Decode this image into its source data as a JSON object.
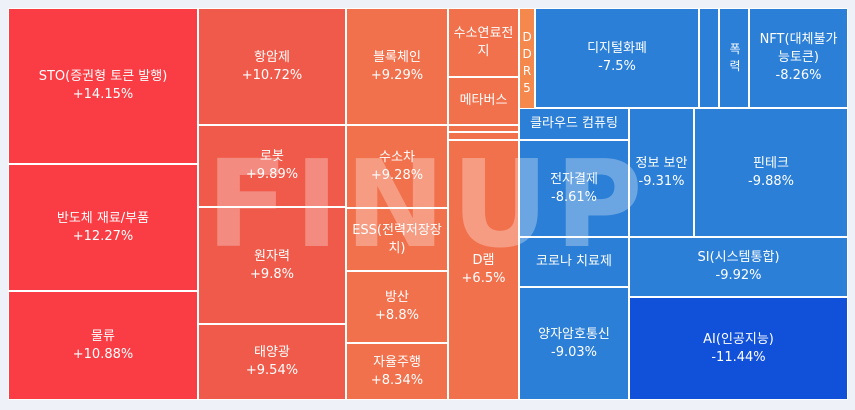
{
  "chart_data": {
    "type": "treemap",
    "watermark": "FINUP",
    "colors": {
      "strong_up": "#fa3c44",
      "mid_up": "#f05a4a",
      "light_up": "#f2714d",
      "weak_up": "#f5884c",
      "down": "#2b7fd6",
      "strong_down": "#1150d8"
    },
    "items": [
      {
        "name": "STO(증권형 토큰 발행)",
        "change": "+14.15%",
        "value": 14.15
      },
      {
        "name": "반도체 재료/부품",
        "change": "+12.27%",
        "value": 12.27
      },
      {
        "name": "물류",
        "change": "+10.88%",
        "value": 10.88
      },
      {
        "name": "항암제",
        "change": "+10.72%",
        "value": 10.72
      },
      {
        "name": "로봇",
        "change": "+9.89%",
        "value": 9.89
      },
      {
        "name": "원자력",
        "change": "+9.8%",
        "value": 9.8
      },
      {
        "name": "태양광",
        "change": "+9.54%",
        "value": 9.54
      },
      {
        "name": "블록체인",
        "change": "+9.29%",
        "value": 9.29
      },
      {
        "name": "수소차",
        "change": "+9.28%",
        "value": 9.28
      },
      {
        "name": "ESS(전력저장장치)",
        "change": "",
        "value": null
      },
      {
        "name": "방산",
        "change": "+8.8%",
        "value": 8.8
      },
      {
        "name": "자율주행",
        "change": "+8.34%",
        "value": 8.34
      },
      {
        "name": "수소연료전지",
        "change": "",
        "value": null
      },
      {
        "name": "메타버스",
        "change": "",
        "value": null
      },
      {
        "name": "",
        "change": "",
        "value": null
      },
      {
        "name": "",
        "change": "",
        "value": null
      },
      {
        "name": "D램",
        "change": "+6.5%",
        "value": 6.5
      },
      {
        "name": "DDR5",
        "change": "",
        "value": null
      },
      {
        "name": "디지털화폐",
        "change": "-7.5%",
        "value": -7.5
      },
      {
        "name": "",
        "change": "",
        "value": null
      },
      {
        "name": "폭력",
        "change": "",
        "value": null
      },
      {
        "name": "NFT(대체불가능토큰)",
        "change": "-8.26%",
        "value": -8.26
      },
      {
        "name": "클라우드 컴퓨팅",
        "change": "",
        "value": null
      },
      {
        "name": "전자결제",
        "change": "-8.61%",
        "value": -8.61
      },
      {
        "name": "정보 보안",
        "change": "-9.31%",
        "value": -9.31
      },
      {
        "name": "핀테크",
        "change": "-9.88%",
        "value": -9.88
      },
      {
        "name": "코로나 치료제",
        "change": "",
        "value": null
      },
      {
        "name": "SI(시스템통합)",
        "change": "-9.92%",
        "value": -9.92
      },
      {
        "name": "양자암호통신",
        "change": "-9.03%",
        "value": -9.03
      },
      {
        "name": "AI(인공지능)",
        "change": "-11.44%",
        "value": -11.44
      }
    ]
  }
}
